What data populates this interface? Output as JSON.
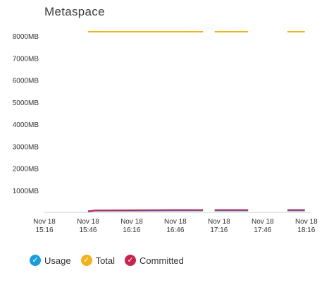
{
  "chart_data": {
    "type": "line",
    "title": "Metaspace",
    "xlabel": "",
    "ylabel": "",
    "ylim": [
      0,
      8200
    ],
    "y_ticks": [
      {
        "value": 1000,
        "label": "1000MB"
      },
      {
        "value": 2000,
        "label": "2000MB"
      },
      {
        "value": 3000,
        "label": "3000MB"
      },
      {
        "value": 4000,
        "label": "4000MB"
      },
      {
        "value": 5000,
        "label": "5000MB"
      },
      {
        "value": 6000,
        "label": "6000MB"
      },
      {
        "value": 7000,
        "label": "7000MB"
      },
      {
        "value": 8000,
        "label": "8000MB"
      }
    ],
    "xlim": [
      "15:16",
      "18:19"
    ],
    "x_ticks": [
      {
        "time": "15:16",
        "line1": "Nov 18",
        "line2": "15:16"
      },
      {
        "time": "15:46",
        "line1": "Nov 18",
        "line2": "15:46"
      },
      {
        "time": "16:16",
        "line1": "Nov 18",
        "line2": "16:16"
      },
      {
        "time": "16:46",
        "line1": "Nov 18",
        "line2": "16:46"
      },
      {
        "time": "17:16",
        "line1": "Nov 18",
        "line2": "17:16"
      },
      {
        "time": "17:46",
        "line1": "Nov 18",
        "line2": "17:46"
      },
      {
        "time": "18:16",
        "line1": "Nov 18",
        "line2": "18:16"
      }
    ],
    "grid": false,
    "legend_position": "bottom-left",
    "series": [
      {
        "name": "Usage",
        "color": "#1a9edb",
        "segments": [
          [
            {
              "t": "15:46",
              "v": 40
            },
            {
              "t": "15:51",
              "v": 70
            },
            {
              "t": "16:16",
              "v": 75
            },
            {
              "t": "16:46",
              "v": 80
            },
            {
              "t": "17:05",
              "v": 80
            }
          ],
          [
            {
              "t": "17:13",
              "v": 80
            },
            {
              "t": "17:36",
              "v": 80
            }
          ],
          [
            {
              "t": "18:03",
              "v": 80
            },
            {
              "t": "18:15",
              "v": 80
            }
          ]
        ]
      },
      {
        "name": "Total",
        "color": "#f2b21e",
        "segments": [
          [
            {
              "t": "15:46",
              "v": 8200
            },
            {
              "t": "17:05",
              "v": 8200
            }
          ],
          [
            {
              "t": "17:13",
              "v": 8200
            },
            {
              "t": "17:36",
              "v": 8200
            }
          ],
          [
            {
              "t": "18:03",
              "v": 8200
            },
            {
              "t": "18:15",
              "v": 8200
            }
          ]
        ]
      },
      {
        "name": "Committed",
        "color": "#c8234f",
        "segments": [
          [
            {
              "t": "15:46",
              "v": 50
            },
            {
              "t": "15:51",
              "v": 90
            },
            {
              "t": "16:16",
              "v": 95
            },
            {
              "t": "16:46",
              "v": 110
            },
            {
              "t": "17:05",
              "v": 110
            }
          ],
          [
            {
              "t": "17:13",
              "v": 110
            },
            {
              "t": "17:36",
              "v": 110
            }
          ],
          [
            {
              "t": "18:03",
              "v": 110
            },
            {
              "t": "18:15",
              "v": 110
            }
          ]
        ]
      }
    ]
  },
  "legend": {
    "items": [
      {
        "label": "Usage",
        "color": "#1a9edb"
      },
      {
        "label": "Total",
        "color": "#f2b21e"
      },
      {
        "label": "Committed",
        "color": "#c8234f"
      }
    ],
    "check_glyph": "✓"
  },
  "colors": {
    "axis": "#d0d0d0",
    "text": "#333333"
  }
}
